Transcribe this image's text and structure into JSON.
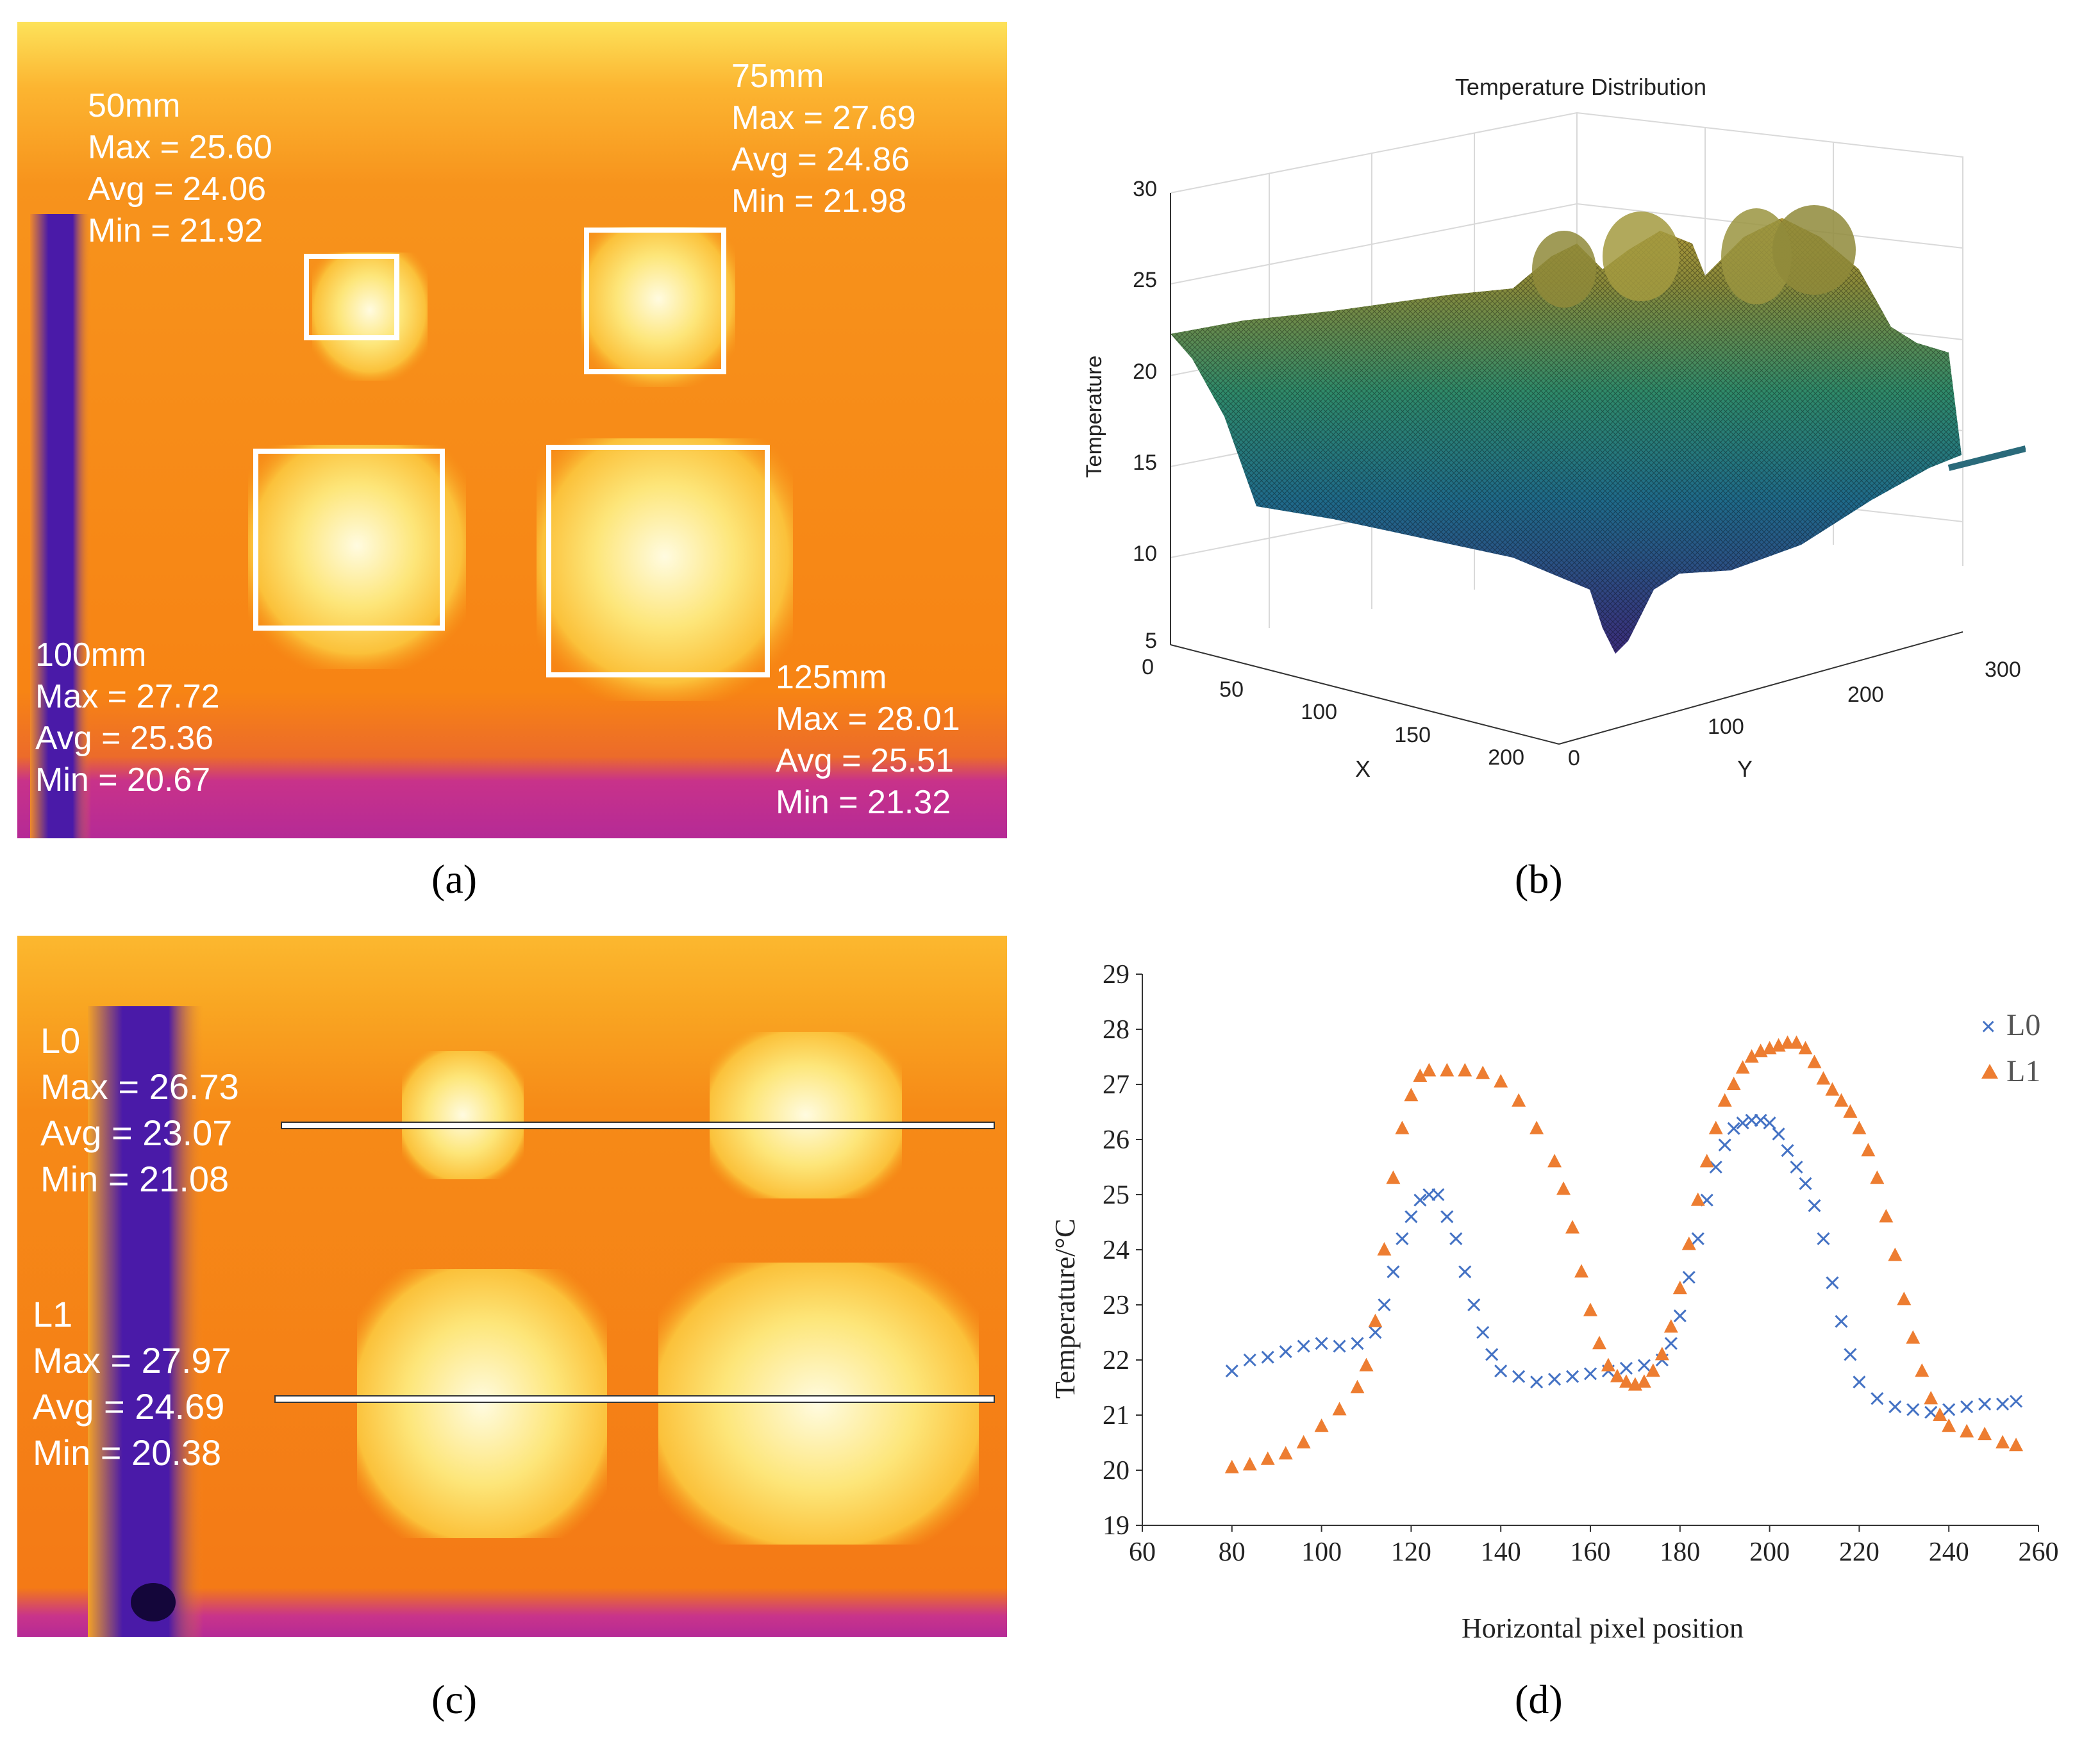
{
  "panel_labels": {
    "a": "(a)",
    "b": "(b)",
    "c": "(c)",
    "d": "(d)"
  },
  "panel_a": {
    "regions": [
      {
        "name": "50mm",
        "max": "Max = 25.60",
        "avg": "Avg = 24.06",
        "min": "Min = 21.92"
      },
      {
        "name": "75mm",
        "max": "Max = 27.69",
        "avg": "Avg = 24.86",
        "min": "Min = 21.98"
      },
      {
        "name": "100mm",
        "max": "Max = 27.72",
        "avg": "Avg = 25.36",
        "min": "Min = 20.67"
      },
      {
        "name": "125mm",
        "max": "Max = 28.01",
        "avg": "Avg = 25.51",
        "min": "Min = 21.32"
      }
    ]
  },
  "panel_c": {
    "lines": [
      {
        "name": "L0",
        "max": "Max = 26.73",
        "avg": "Avg = 23.07",
        "min": "Min = 21.08"
      },
      {
        "name": "L1",
        "max": "Max = 27.97",
        "avg": "Avg = 24.69",
        "min": "Min = 20.38"
      }
    ]
  },
  "chart_data": [
    {
      "panel": "b",
      "type": "surface",
      "title": "Temperature Distribution",
      "xlabel": "X",
      "ylabel": "Y",
      "zlabel": "Temperature",
      "xticks": [
        "0",
        "50",
        "100",
        "150",
        "200"
      ],
      "yticks": [
        "0",
        "100",
        "200",
        "300"
      ],
      "zticks": [
        "5",
        "10",
        "15",
        "20",
        "25",
        "30"
      ],
      "zlim": [
        5,
        30
      ],
      "grid": true,
      "colormap": "parula"
    },
    {
      "panel": "d",
      "type": "scatter",
      "xlabel": "Horizontal pixel position",
      "ylabel": "Temperature/°C",
      "xlim": [
        60,
        260
      ],
      "ylim": [
        19,
        29
      ],
      "xticks": [
        60,
        80,
        100,
        120,
        140,
        160,
        180,
        200,
        220,
        240,
        260
      ],
      "yticks": [
        19,
        20,
        21,
        22,
        23,
        24,
        25,
        26,
        27,
        28,
        29
      ],
      "legend_position": "top-right",
      "series": [
        {
          "name": "L0",
          "marker": "x",
          "color": "#4472C4",
          "points": [
            [
              80,
              21.8
            ],
            [
              84,
              22.0
            ],
            [
              88,
              22.05
            ],
            [
              92,
              22.15
            ],
            [
              96,
              22.25
            ],
            [
              100,
              22.3
            ],
            [
              104,
              22.25
            ],
            [
              108,
              22.3
            ],
            [
              112,
              22.5
            ],
            [
              114,
              23.0
            ],
            [
              116,
              23.6
            ],
            [
              118,
              24.2
            ],
            [
              120,
              24.6
            ],
            [
              122,
              24.9
            ],
            [
              124,
              25.0
            ],
            [
              126,
              25.0
            ],
            [
              128,
              24.6
            ],
            [
              130,
              24.2
            ],
            [
              132,
              23.6
            ],
            [
              134,
              23.0
            ],
            [
              136,
              22.5
            ],
            [
              138,
              22.1
            ],
            [
              140,
              21.8
            ],
            [
              144,
              21.7
            ],
            [
              148,
              21.6
            ],
            [
              152,
              21.65
            ],
            [
              156,
              21.7
            ],
            [
              160,
              21.75
            ],
            [
              164,
              21.8
            ],
            [
              168,
              21.85
            ],
            [
              172,
              21.9
            ],
            [
              176,
              22.0
            ],
            [
              178,
              22.3
            ],
            [
              180,
              22.8
            ],
            [
              182,
              23.5
            ],
            [
              184,
              24.2
            ],
            [
              186,
              24.9
            ],
            [
              188,
              25.5
            ],
            [
              190,
              25.9
            ],
            [
              192,
              26.2
            ],
            [
              194,
              26.3
            ],
            [
              196,
              26.35
            ],
            [
              198,
              26.35
            ],
            [
              200,
              26.3
            ],
            [
              202,
              26.1
            ],
            [
              204,
              25.8
            ],
            [
              206,
              25.5
            ],
            [
              208,
              25.2
            ],
            [
              210,
              24.8
            ],
            [
              212,
              24.2
            ],
            [
              214,
              23.4
            ],
            [
              216,
              22.7
            ],
            [
              218,
              22.1
            ],
            [
              220,
              21.6
            ],
            [
              224,
              21.3
            ],
            [
              228,
              21.15
            ],
            [
              232,
              21.1
            ],
            [
              236,
              21.05
            ],
            [
              240,
              21.1
            ],
            [
              244,
              21.15
            ],
            [
              248,
              21.2
            ],
            [
              252,
              21.2
            ],
            [
              255,
              21.25
            ]
          ]
        },
        {
          "name": "L1",
          "marker": "triangle",
          "color": "#ED7D31",
          "points": [
            [
              80,
              20.05
            ],
            [
              84,
              20.1
            ],
            [
              88,
              20.2
            ],
            [
              92,
              20.3
            ],
            [
              96,
              20.5
            ],
            [
              100,
              20.8
            ],
            [
              104,
              21.1
            ],
            [
              108,
              21.5
            ],
            [
              110,
              21.9
            ],
            [
              112,
              22.7
            ],
            [
              114,
              24.0
            ],
            [
              116,
              25.3
            ],
            [
              118,
              26.2
            ],
            [
              120,
              26.8
            ],
            [
              122,
              27.15
            ],
            [
              124,
              27.25
            ],
            [
              128,
              27.25
            ],
            [
              132,
              27.25
            ],
            [
              136,
              27.2
            ],
            [
              140,
              27.05
            ],
            [
              144,
              26.7
            ],
            [
              148,
              26.2
            ],
            [
              152,
              25.6
            ],
            [
              154,
              25.1
            ],
            [
              156,
              24.4
            ],
            [
              158,
              23.6
            ],
            [
              160,
              22.9
            ],
            [
              162,
              22.3
            ],
            [
              164,
              21.9
            ],
            [
              166,
              21.7
            ],
            [
              168,
              21.6
            ],
            [
              170,
              21.55
            ],
            [
              172,
              21.6
            ],
            [
              174,
              21.8
            ],
            [
              176,
              22.1
            ],
            [
              178,
              22.6
            ],
            [
              180,
              23.3
            ],
            [
              182,
              24.1
            ],
            [
              184,
              24.9
            ],
            [
              186,
              25.6
            ],
            [
              188,
              26.2
            ],
            [
              190,
              26.7
            ],
            [
              192,
              27.0
            ],
            [
              194,
              27.3
            ],
            [
              196,
              27.5
            ],
            [
              198,
              27.6
            ],
            [
              200,
              27.65
            ],
            [
              202,
              27.7
            ],
            [
              204,
              27.75
            ],
            [
              206,
              27.75
            ],
            [
              208,
              27.65
            ],
            [
              210,
              27.4
            ],
            [
              212,
              27.1
            ],
            [
              214,
              26.9
            ],
            [
              216,
              26.7
            ],
            [
              218,
              26.5
            ],
            [
              220,
              26.2
            ],
            [
              222,
              25.8
            ],
            [
              224,
              25.3
            ],
            [
              226,
              24.6
            ],
            [
              228,
              23.9
            ],
            [
              230,
              23.1
            ],
            [
              232,
              22.4
            ],
            [
              234,
              21.8
            ],
            [
              236,
              21.3
            ],
            [
              238,
              21.0
            ],
            [
              240,
              20.8
            ],
            [
              244,
              20.7
            ],
            [
              248,
              20.65
            ],
            [
              252,
              20.5
            ],
            [
              255,
              20.45
            ]
          ]
        }
      ]
    }
  ]
}
